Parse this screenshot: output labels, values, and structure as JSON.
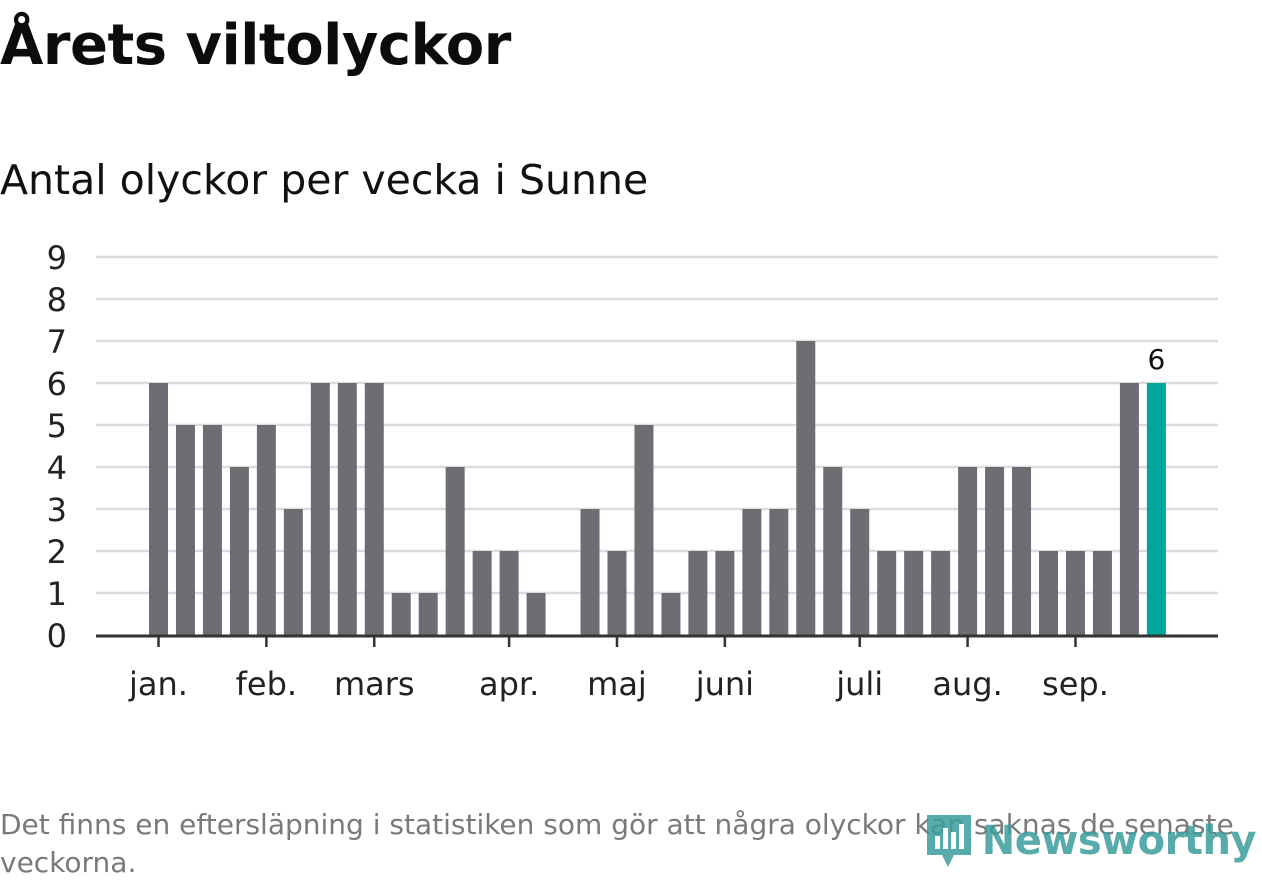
{
  "title": "Årets viltolyckor",
  "subtitle": "Antal olyckor per vecka i Sunne",
  "footnote": "Det finns en eftersläpning i statistiken som gör att några olyckor kan saknas de senaste veckorna.",
  "logo": {
    "text": "Newsworthy",
    "icon": "newsworthy-logo-icon"
  },
  "colors": {
    "bar": "#6e6d73",
    "highlight": "#00a59b",
    "grid": "#dcdcdc",
    "axis": "#333333",
    "logo": "#3a9d9c"
  },
  "chart_data": {
    "type": "bar",
    "y_ticks": [
      "0",
      "1",
      "2",
      "3",
      "4",
      "5",
      "6",
      "7",
      "8",
      "9"
    ],
    "ylim": [
      0,
      9
    ],
    "grid": true,
    "values": [
      6,
      5,
      5,
      4,
      5,
      3,
      6,
      6,
      6,
      1,
      1,
      4,
      2,
      2,
      1,
      0,
      3,
      2,
      5,
      1,
      2,
      2,
      3,
      3,
      7,
      4,
      3,
      2,
      2,
      2,
      4,
      4,
      4,
      2,
      2,
      2,
      6,
      6
    ],
    "highlight_index": 37,
    "highlight_label": "6",
    "month_labels": [
      {
        "label": "jan.",
        "week_index": 0
      },
      {
        "label": "feb.",
        "week_index": 4
      },
      {
        "label": "mars",
        "week_index": 8
      },
      {
        "label": "apr.",
        "week_index": 13
      },
      {
        "label": "maj",
        "week_index": 17
      },
      {
        "label": "juni",
        "week_index": 21
      },
      {
        "label": "juli",
        "week_index": 26
      },
      {
        "label": "aug.",
        "week_index": 30
      },
      {
        "label": "sep.",
        "week_index": 34
      }
    ]
  }
}
